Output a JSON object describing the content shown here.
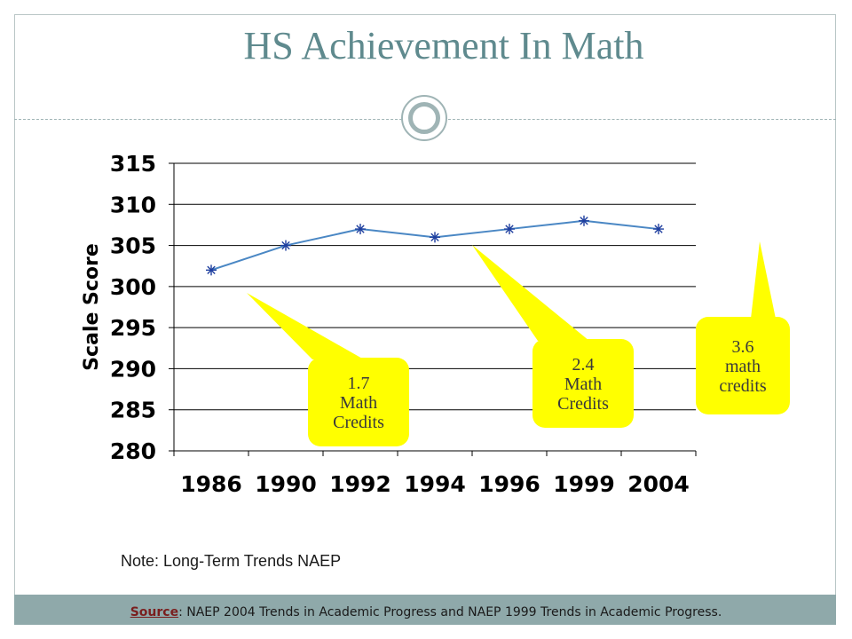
{
  "title": "HS Achievement In Math",
  "note": "Note: Long-Term Trends NAEP",
  "source": {
    "label": "Source",
    "text": ": NAEP 2004 Trends in Academic Progress and NAEP 1999 Trends in Academic Progress."
  },
  "colors": {
    "title": "#5f8a8e",
    "line": "#4a87c4",
    "callout": "#ffff00",
    "footer_band": "#8fa9aa"
  },
  "chart_data": {
    "type": "line",
    "categories": [
      "1986",
      "1990",
      "1992",
      "1994",
      "1996",
      "1999",
      "2004"
    ],
    "values": [
      302,
      305,
      307,
      306,
      307,
      308,
      307
    ],
    "ylabel": "Scale Score",
    "ylim": [
      280,
      315
    ],
    "yticks": [
      280,
      285,
      290,
      295,
      300,
      305,
      310,
      315
    ],
    "grid": true,
    "marker": "asterisk",
    "annotations": [
      {
        "lines": [
          "1.7",
          "Math",
          "Credits"
        ]
      },
      {
        "lines": [
          "2.4",
          "Math",
          "Credits"
        ]
      },
      {
        "lines": [
          "3.6",
          "math",
          "credits"
        ]
      }
    ]
  }
}
